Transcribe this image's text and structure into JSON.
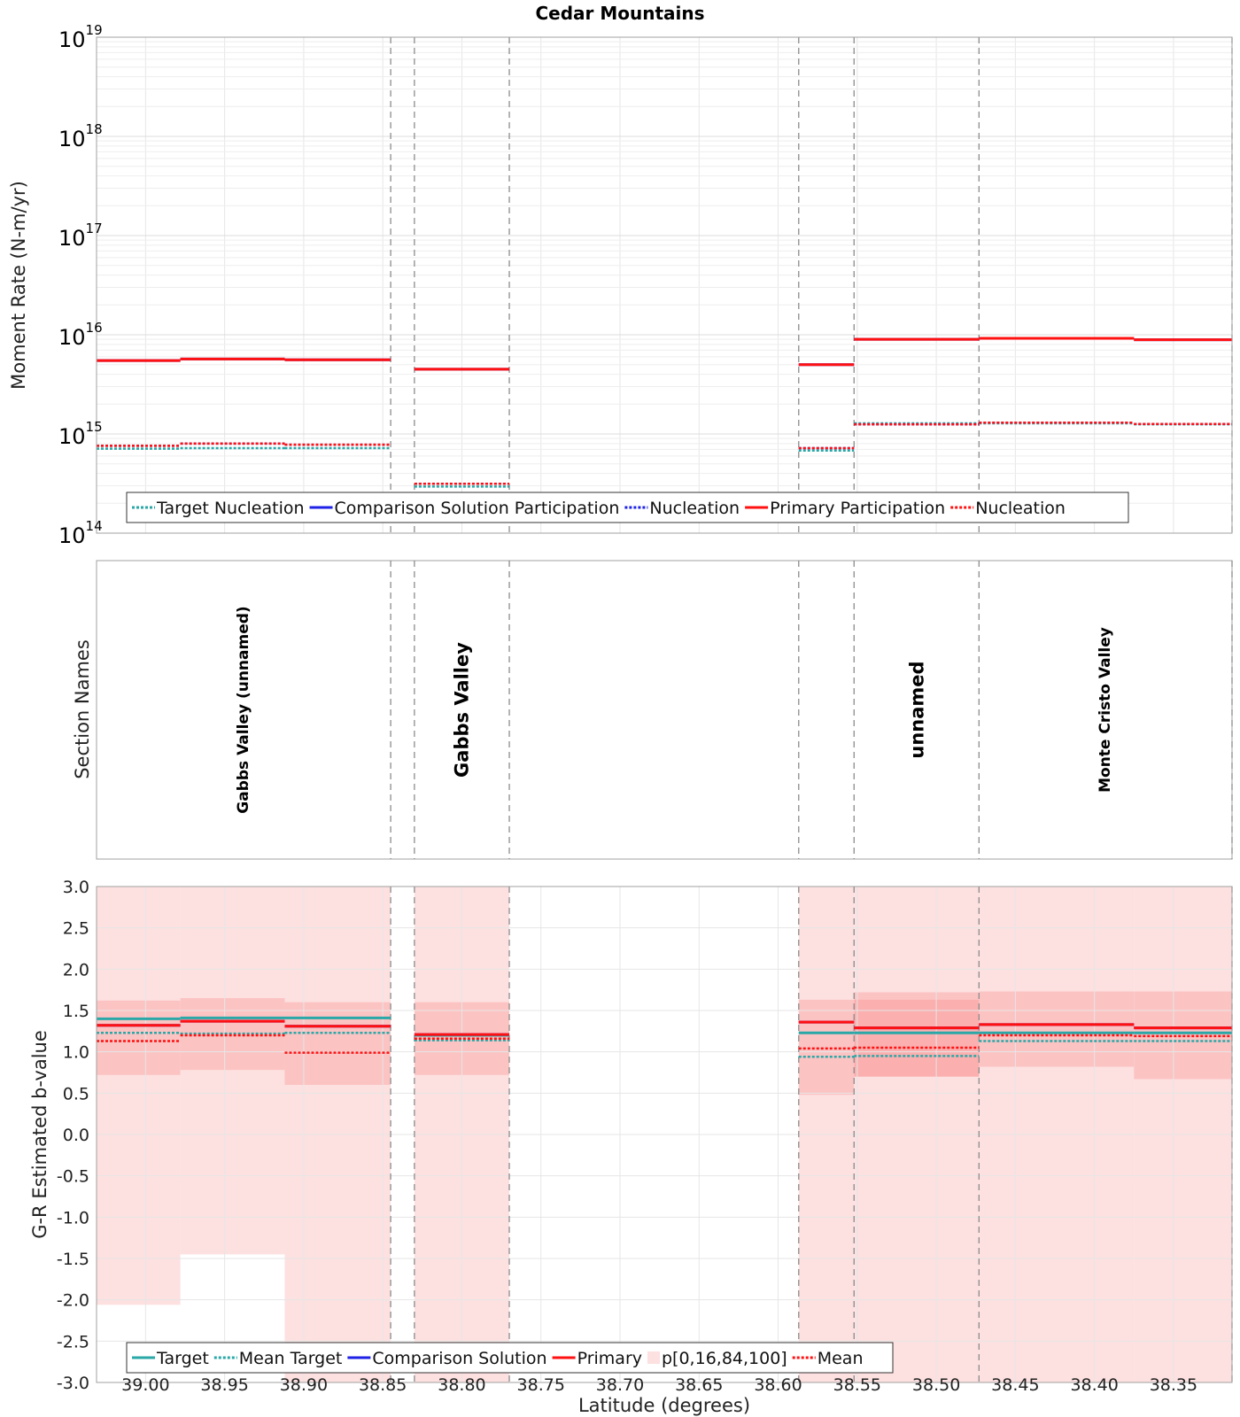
{
  "title": "Cedar Mountains",
  "colors": {
    "target": "#2aa7a7",
    "comparison": "#1e22e6",
    "primary": "#ff1111",
    "primary_dark": "#b3203a",
    "band_light": "#fde0e0",
    "band_mid": "#fcc3c3",
    "band_dark": "#fa9e9e",
    "grid": "#e6e6e6",
    "boundary": "#8c8c8c"
  },
  "chart_data": {
    "type": "multi-panel step chart",
    "x_axis": {
      "label": "Latitude (degrees)",
      "range": [
        39.031,
        38.313
      ],
      "reversed": true,
      "ticks": [
        39.0,
        38.95,
        38.9,
        38.85,
        38.8,
        38.75,
        38.7,
        38.65,
        38.6,
        38.55,
        38.5,
        38.45,
        38.4,
        38.35
      ],
      "tick_labels": [
        "39.00",
        "38.95",
        "38.90",
        "38.85",
        "38.80",
        "38.75",
        "38.70",
        "38.65",
        "38.60",
        "38.55",
        "38.50",
        "38.45",
        "38.40",
        "38.35"
      ]
    },
    "section_boundaries": [
      38.845,
      38.83,
      38.77,
      38.587,
      38.552,
      38.473,
      38.313
    ],
    "segments": [
      {
        "lat_start": 39.031,
        "lat_end": 38.978
      },
      {
        "lat_start": 38.978,
        "lat_end": 38.912
      },
      {
        "lat_start": 38.912,
        "lat_end": 38.845
      },
      {
        "lat_start": 38.83,
        "lat_end": 38.77
      },
      {
        "lat_start": 38.587,
        "lat_end": 38.552
      },
      {
        "lat_start": 38.552,
        "lat_end": 38.473
      },
      {
        "lat_start": 38.473,
        "lat_end": 38.375
      },
      {
        "lat_start": 38.375,
        "lat_end": 38.313
      }
    ],
    "moment_panel": {
      "ylabel": "Moment Rate (N-m/yr)",
      "yscale": "log",
      "ylim_exponents": [
        14,
        19
      ],
      "tick_base": "10",
      "tick_exponents": [
        "14",
        "15",
        "16",
        "17",
        "18",
        "19"
      ],
      "series": [
        {
          "name": "Target Nucleation",
          "style": "dotted",
          "color": "target",
          "values": [
            710000000000000.0,
            720000000000000.0,
            720000000000000.0,
            295000000000000.0,
            680000000000000.0,
            1280000000000000.0,
            1280000000000000.0,
            1250000000000000.0
          ]
        },
        {
          "name": "Comparison Solution Participation",
          "style": "solid",
          "color": "comparison",
          "values": [
            5500000000000000.0,
            5700000000000000.0,
            5600000000000000.0,
            4500000000000000.0,
            5000000000000000.0,
            9000000000000000.0,
            9200000000000000.0,
            8900000000000000.0
          ]
        },
        {
          "name": "Comparison Solution Nucleation",
          "style": "dotted",
          "color": "comparison",
          "values": [
            760000000000000.0,
            800000000000000.0,
            780000000000000.0,
            315000000000000.0,
            720000000000000.0,
            1250000000000000.0,
            1300000000000000.0,
            1260000000000000.0
          ]
        },
        {
          "name": "Primary Participation",
          "style": "solid",
          "color": "primary",
          "values": [
            5500000000000000.0,
            5700000000000000.0,
            5600000000000000.0,
            4500000000000000.0,
            5000000000000000.0,
            9000000000000000.0,
            9200000000000000.0,
            8900000000000000.0
          ]
        },
        {
          "name": "Primary Nucleation",
          "style": "dotted",
          "color": "primary",
          "values": [
            760000000000000.0,
            800000000000000.0,
            780000000000000.0,
            315000000000000.0,
            720000000000000.0,
            1250000000000000.0,
            1300000000000000.0,
            1260000000000000.0
          ]
        }
      ],
      "legend": [
        "Target Nucleation",
        "Comparison Solution Participation",
        "Nucleation",
        "Primary Participation",
        "Nucleation"
      ]
    },
    "section_panel": {
      "ylabel": "Section Names",
      "names": [
        {
          "text": "Gabbs Valley (unnamed)",
          "lat": 38.938
        },
        {
          "text": "Gabbs Valley",
          "lat": 38.8
        },
        {
          "text": "unnamed",
          "lat": 38.512
        },
        {
          "text": "Monte Cristo Valley",
          "lat": 38.393
        }
      ]
    },
    "bvalue_panel": {
      "ylabel": "G-R Estimated b-value",
      "ylim": [
        -3.0,
        3.0
      ],
      "ticks": [
        3.0,
        2.5,
        2.0,
        1.5,
        1.0,
        0.5,
        0.0,
        -0.5,
        -1.0,
        -1.5,
        -2.0,
        -2.5,
        -3.0
      ],
      "tick_labels": [
        "3.0",
        "2.5",
        "2.0",
        "1.5",
        "1.0",
        "0.5",
        "0.0",
        "-0.5",
        "-1.0",
        "-1.5",
        "-2.0",
        "-2.5",
        "-3.0"
      ],
      "percentile_bands": [
        {
          "p0": -2.06,
          "p16": 0.72,
          "p84": 1.62,
          "p100": 3.0
        },
        {
          "p0": -1.45,
          "p16": 0.78,
          "p84": 1.65,
          "p100": 3.0
        },
        {
          "p0": -3.0,
          "p16": 0.6,
          "p84": 1.6,
          "p100": 3.0
        },
        {
          "p0": -3.0,
          "p16": 0.72,
          "p84": 1.6,
          "p100": 3.0
        },
        {
          "p0": -3.0,
          "p16": 0.48,
          "p84": 1.63,
          "p100": 3.0
        },
        {
          "p0": -3.0,
          "p16": 0.7,
          "p84": 1.72,
          "p100": 3.0
        },
        {
          "p0": -3.0,
          "p16": 0.82,
          "p84": 1.73,
          "p100": 3.0
        },
        {
          "p0": -3.0,
          "p16": 0.67,
          "p84": 1.73,
          "p100": 3.0
        }
      ],
      "dark_band": {
        "lat_start": 38.552,
        "lat_end": 38.473,
        "low": 0.7,
        "high": 1.63
      },
      "series": [
        {
          "name": "Target",
          "style": "solid",
          "color": "target",
          "values": [
            1.4,
            1.41,
            1.41,
            1.2,
            1.23,
            1.23,
            1.23,
            1.23
          ]
        },
        {
          "name": "Mean Target",
          "style": "dotted",
          "color": "target",
          "values": [
            1.23,
            1.22,
            1.23,
            1.14,
            0.94,
            0.95,
            1.13,
            1.13
          ]
        },
        {
          "name": "Comparison Solution",
          "style": "solid",
          "color": "comparison",
          "values": [
            1.32,
            1.37,
            1.31,
            1.21,
            1.36,
            1.29,
            1.33,
            1.29
          ]
        },
        {
          "name": "Primary",
          "style": "solid",
          "color": "primary",
          "values": [
            1.32,
            1.37,
            1.31,
            1.21,
            1.36,
            1.29,
            1.33,
            1.29
          ]
        },
        {
          "name": "Mean",
          "style": "dotted",
          "color": "primary",
          "values": [
            1.13,
            1.2,
            0.99,
            1.16,
            1.04,
            1.05,
            1.2,
            1.19
          ]
        }
      ],
      "legend": [
        "Target",
        "Mean Target",
        "Comparison Solution",
        "Primary",
        "p[0,16,84,100]",
        "Mean"
      ]
    }
  }
}
